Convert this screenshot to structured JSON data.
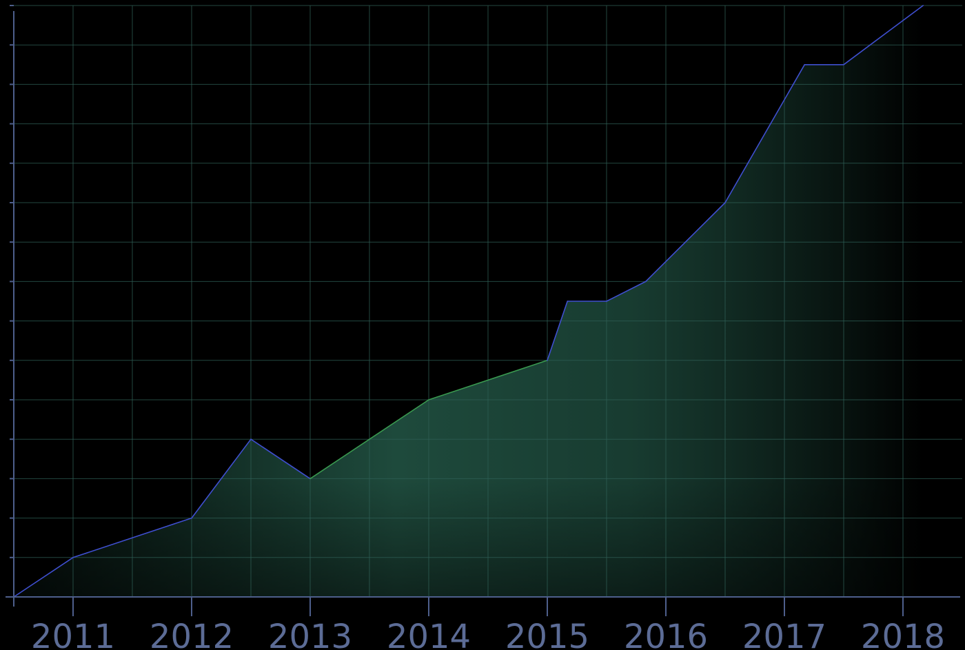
{
  "chart_data": {
    "type": "area",
    "title": "",
    "xlabel": "",
    "ylabel": "",
    "x_tick_labels": [
      "2011",
      "2012",
      "2013",
      "2014",
      "2015",
      "2016",
      "2017",
      "2018"
    ],
    "x_ticks": [
      2011,
      2012,
      2013,
      2014,
      2015,
      2016,
      2017,
      2018
    ],
    "xlim": [
      2010.5,
      2018.5
    ],
    "ylim": [
      0,
      15
    ],
    "grid": true,
    "legend": "none",
    "series": [
      {
        "x": [
          2010.5,
          2011,
          2012,
          2012.5,
          2013,
          2014,
          2015,
          2015.17,
          2015.5,
          2015.83,
          2016.5,
          2017.17,
          2017.5,
          2018.17
        ],
        "values": [
          0,
          1,
          2,
          4,
          3,
          5,
          6,
          7.5,
          7.5,
          8,
          10,
          13.5,
          13.5,
          15
        ]
      }
    ],
    "colors": {
      "background": "#000000",
      "grid": "#2f5f55",
      "axis": "#4e5f8c",
      "tick_label": "#5c6c96",
      "line_primary": "#3f4fd0",
      "line_secondary": "#3a9a50",
      "fill": "#1e4a3c"
    }
  }
}
